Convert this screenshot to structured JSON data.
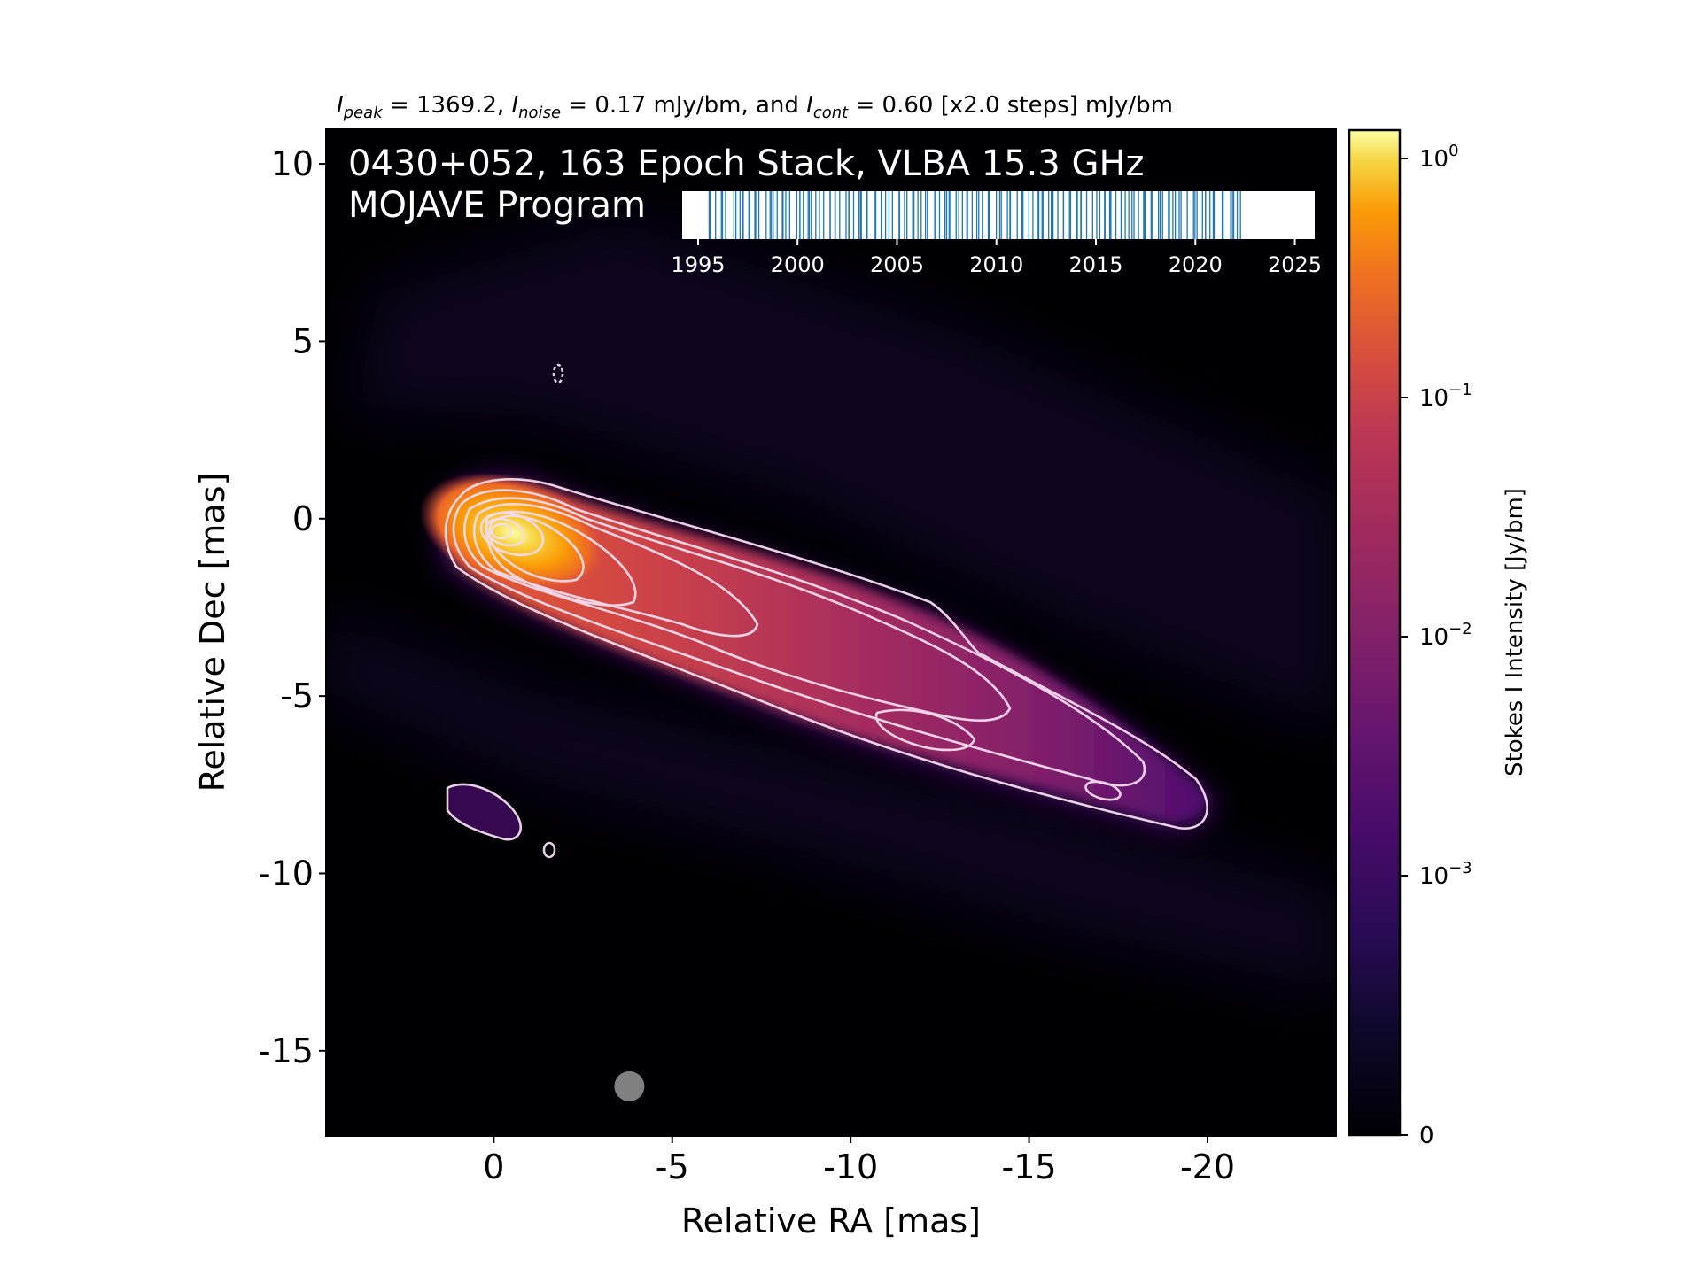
{
  "chart_data": {
    "type": "heatmap",
    "header": {
      "peak_symbol": "I",
      "peak_sub": "peak",
      "peak_text": " = 1369.2, ",
      "noise_symbol": "I",
      "noise_sub": "noise",
      "noise_text": " = 0.17 mJy/bm, and ",
      "cont_symbol": "I",
      "cont_sub": "cont",
      "cont_text": " = 0.60 [x2.0 steps] mJy/bm"
    },
    "title_line1": "0430+052, 163 Epoch Stack, VLBA 15.3 GHz",
    "title_line2": "MOJAVE Program",
    "xlabel": "Relative RA [mas]",
    "ylabel": "Relative Dec [mas]",
    "xlim": [
      4.7,
      -23.6
    ],
    "ylim": [
      -17.4,
      11.0
    ],
    "x_ticks": [
      0,
      -5,
      -10,
      -15,
      -20
    ],
    "x_tick_labels": [
      "0",
      "-5",
      "-10",
      "-15",
      "-20"
    ],
    "y_ticks": [
      10,
      5,
      0,
      -5,
      -10,
      -15
    ],
    "y_tick_labels": [
      "10",
      "5",
      "0",
      "-5",
      "-10",
      "-15"
    ],
    "colorbar": {
      "label": "Stokes I Intensity [Jy/bm]",
      "scale": "log",
      "colormap": "inferno",
      "ticks": [
        {
          "base": "10",
          "exp": "0",
          "value": 1
        },
        {
          "base": "10",
          "exp": "−1",
          "value": 0.1
        },
        {
          "base": "10",
          "exp": "−2",
          "value": 0.01
        },
        {
          "base": "10",
          "exp": "−3",
          "value": 0.001
        },
        {
          "base": "0",
          "exp": "",
          "value": 0
        }
      ]
    },
    "epoch_inset": {
      "xlim": [
        1994.2,
        2026.0
      ],
      "tick_labels": [
        "1995",
        "2000",
        "2005",
        "2010",
        "2015",
        "2020",
        "2025"
      ],
      "ticks": [
        1995,
        2000,
        2005,
        2010,
        2015,
        2020,
        2025
      ],
      "epoch_start": 1995.5,
      "epoch_end": 2022.4,
      "epoch_count": 163,
      "line_color": "#1f77b4"
    },
    "beam": {
      "ra": -3.8,
      "dec": -16.0,
      "color": "#808080"
    },
    "jet_ridge": [
      {
        "ra": 0.0,
        "dec": 0.0,
        "intensity": 1.37
      },
      {
        "ra": -2.5,
        "dec": -1.0,
        "intensity": 0.2
      },
      {
        "ra": -5.5,
        "dec": -2.4,
        "intensity": 0.06
      },
      {
        "ra": -8.0,
        "dec": -3.6,
        "intensity": 0.03
      },
      {
        "ra": -10.5,
        "dec": -5.1,
        "intensity": 0.02
      },
      {
        "ra": -13.0,
        "dec": -6.0,
        "intensity": 0.01
      },
      {
        "ra": -16.0,
        "dec": -7.0,
        "intensity": 0.005
      },
      {
        "ra": -19.5,
        "dec": -8.3,
        "intensity": 0.002
      }
    ]
  }
}
